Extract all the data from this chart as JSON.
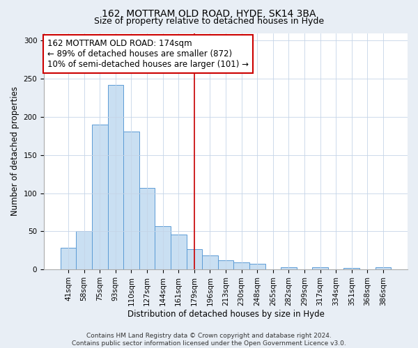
{
  "title": "162, MOTTRAM OLD ROAD, HYDE, SK14 3BA",
  "subtitle": "Size of property relative to detached houses in Hyde",
  "xlabel": "Distribution of detached houses by size in Hyde",
  "ylabel": "Number of detached properties",
  "bar_labels": [
    "41sqm",
    "58sqm",
    "75sqm",
    "93sqm",
    "110sqm",
    "127sqm",
    "144sqm",
    "161sqm",
    "179sqm",
    "196sqm",
    "213sqm",
    "230sqm",
    "248sqm",
    "265sqm",
    "282sqm",
    "299sqm",
    "317sqm",
    "334sqm",
    "351sqm",
    "368sqm",
    "386sqm"
  ],
  "bar_values": [
    28,
    50,
    190,
    242,
    181,
    107,
    57,
    46,
    27,
    18,
    12,
    9,
    7,
    0,
    3,
    0,
    3,
    0,
    2,
    0,
    3
  ],
  "bar_color": "#c9dff2",
  "bar_edge_color": "#5b9bd5",
  "vline_x": 8,
  "vline_color": "#cc0000",
  "annotation_line1": "162 MOTTRAM OLD ROAD: 174sqm",
  "annotation_line2": "← 89% of detached houses are smaller (872)",
  "annotation_line3": "10% of semi-detached houses are larger (101) →",
  "box_edge_color": "#cc0000",
  "ylim": [
    0,
    310
  ],
  "yticks": [
    0,
    50,
    100,
    150,
    200,
    250,
    300
  ],
  "footnote": "Contains HM Land Registry data © Crown copyright and database right 2024.\nContains public sector information licensed under the Open Government Licence v3.0.",
  "bg_color": "#e8eef5",
  "plot_bg_color": "#ffffff",
  "title_fontsize": 10,
  "subtitle_fontsize": 9,
  "axis_label_fontsize": 8.5,
  "tick_fontsize": 7.5,
  "annotation_fontsize": 8.5,
  "footnote_fontsize": 6.5
}
